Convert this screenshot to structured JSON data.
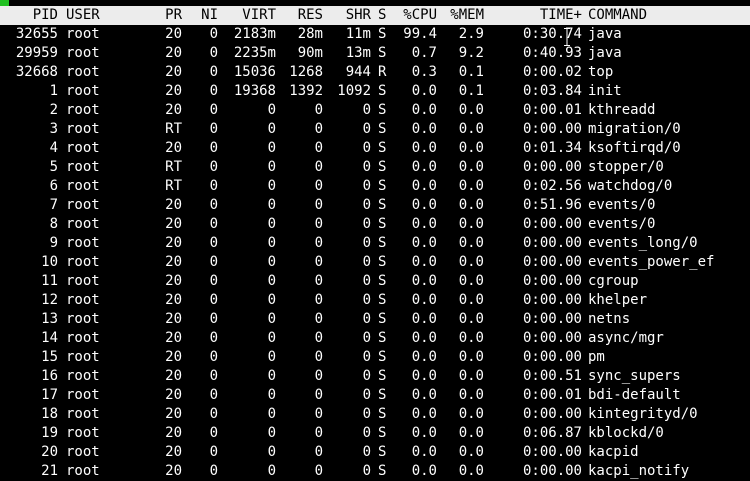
{
  "header": {
    "pid": "PID",
    "user": "USER",
    "pr": "PR",
    "ni": "NI",
    "virt": "VIRT",
    "res": "RES",
    "shr": "SHR",
    "s": "S",
    "cpu": "%CPU",
    "mem": "%MEM",
    "time": "TIME+",
    "command": "COMMAND"
  },
  "processes": [
    {
      "pid": "32655",
      "user": "root",
      "pr": "20",
      "ni": "0",
      "virt": "2183m",
      "res": "28m",
      "shr": "11m",
      "s": "S",
      "cpu": "99.4",
      "mem": "2.9",
      "time": "0:30.74",
      "command": "java"
    },
    {
      "pid": "29959",
      "user": "root",
      "pr": "20",
      "ni": "0",
      "virt": "2235m",
      "res": "90m",
      "shr": "13m",
      "s": "S",
      "cpu": "0.7",
      "mem": "9.2",
      "time": "0:40.93",
      "command": "java"
    },
    {
      "pid": "32668",
      "user": "root",
      "pr": "20",
      "ni": "0",
      "virt": "15036",
      "res": "1268",
      "shr": "944",
      "s": "R",
      "cpu": "0.3",
      "mem": "0.1",
      "time": "0:00.02",
      "command": "top"
    },
    {
      "pid": "1",
      "user": "root",
      "pr": "20",
      "ni": "0",
      "virt": "19368",
      "res": "1392",
      "shr": "1092",
      "s": "S",
      "cpu": "0.0",
      "mem": "0.1",
      "time": "0:03.84",
      "command": "init"
    },
    {
      "pid": "2",
      "user": "root",
      "pr": "20",
      "ni": "0",
      "virt": "0",
      "res": "0",
      "shr": "0",
      "s": "S",
      "cpu": "0.0",
      "mem": "0.0",
      "time": "0:00.01",
      "command": "kthreadd"
    },
    {
      "pid": "3",
      "user": "root",
      "pr": "RT",
      "ni": "0",
      "virt": "0",
      "res": "0",
      "shr": "0",
      "s": "S",
      "cpu": "0.0",
      "mem": "0.0",
      "time": "0:00.00",
      "command": "migration/0"
    },
    {
      "pid": "4",
      "user": "root",
      "pr": "20",
      "ni": "0",
      "virt": "0",
      "res": "0",
      "shr": "0",
      "s": "S",
      "cpu": "0.0",
      "mem": "0.0",
      "time": "0:01.34",
      "command": "ksoftirqd/0"
    },
    {
      "pid": "5",
      "user": "root",
      "pr": "RT",
      "ni": "0",
      "virt": "0",
      "res": "0",
      "shr": "0",
      "s": "S",
      "cpu": "0.0",
      "mem": "0.0",
      "time": "0:00.00",
      "command": "stopper/0"
    },
    {
      "pid": "6",
      "user": "root",
      "pr": "RT",
      "ni": "0",
      "virt": "0",
      "res": "0",
      "shr": "0",
      "s": "S",
      "cpu": "0.0",
      "mem": "0.0",
      "time": "0:02.56",
      "command": "watchdog/0"
    },
    {
      "pid": "7",
      "user": "root",
      "pr": "20",
      "ni": "0",
      "virt": "0",
      "res": "0",
      "shr": "0",
      "s": "S",
      "cpu": "0.0",
      "mem": "0.0",
      "time": "0:51.96",
      "command": "events/0"
    },
    {
      "pid": "8",
      "user": "root",
      "pr": "20",
      "ni": "0",
      "virt": "0",
      "res": "0",
      "shr": "0",
      "s": "S",
      "cpu": "0.0",
      "mem": "0.0",
      "time": "0:00.00",
      "command": "events/0"
    },
    {
      "pid": "9",
      "user": "root",
      "pr": "20",
      "ni": "0",
      "virt": "0",
      "res": "0",
      "shr": "0",
      "s": "S",
      "cpu": "0.0",
      "mem": "0.0",
      "time": "0:00.00",
      "command": "events_long/0"
    },
    {
      "pid": "10",
      "user": "root",
      "pr": "20",
      "ni": "0",
      "virt": "0",
      "res": "0",
      "shr": "0",
      "s": "S",
      "cpu": "0.0",
      "mem": "0.0",
      "time": "0:00.00",
      "command": "events_power_ef"
    },
    {
      "pid": "11",
      "user": "root",
      "pr": "20",
      "ni": "0",
      "virt": "0",
      "res": "0",
      "shr": "0",
      "s": "S",
      "cpu": "0.0",
      "mem": "0.0",
      "time": "0:00.00",
      "command": "cgroup"
    },
    {
      "pid": "12",
      "user": "root",
      "pr": "20",
      "ni": "0",
      "virt": "0",
      "res": "0",
      "shr": "0",
      "s": "S",
      "cpu": "0.0",
      "mem": "0.0",
      "time": "0:00.00",
      "command": "khelper"
    },
    {
      "pid": "13",
      "user": "root",
      "pr": "20",
      "ni": "0",
      "virt": "0",
      "res": "0",
      "shr": "0",
      "s": "S",
      "cpu": "0.0",
      "mem": "0.0",
      "time": "0:00.00",
      "command": "netns"
    },
    {
      "pid": "14",
      "user": "root",
      "pr": "20",
      "ni": "0",
      "virt": "0",
      "res": "0",
      "shr": "0",
      "s": "S",
      "cpu": "0.0",
      "mem": "0.0",
      "time": "0:00.00",
      "command": "async/mgr"
    },
    {
      "pid": "15",
      "user": "root",
      "pr": "20",
      "ni": "0",
      "virt": "0",
      "res": "0",
      "shr": "0",
      "s": "S",
      "cpu": "0.0",
      "mem": "0.0",
      "time": "0:00.00",
      "command": "pm"
    },
    {
      "pid": "16",
      "user": "root",
      "pr": "20",
      "ni": "0",
      "virt": "0",
      "res": "0",
      "shr": "0",
      "s": "S",
      "cpu": "0.0",
      "mem": "0.0",
      "time": "0:00.51",
      "command": "sync_supers"
    },
    {
      "pid": "17",
      "user": "root",
      "pr": "20",
      "ni": "0",
      "virt": "0",
      "res": "0",
      "shr": "0",
      "s": "S",
      "cpu": "0.0",
      "mem": "0.0",
      "time": "0:00.01",
      "command": "bdi-default"
    },
    {
      "pid": "18",
      "user": "root",
      "pr": "20",
      "ni": "0",
      "virt": "0",
      "res": "0",
      "shr": "0",
      "s": "S",
      "cpu": "0.0",
      "mem": "0.0",
      "time": "0:00.00",
      "command": "kintegrityd/0"
    },
    {
      "pid": "19",
      "user": "root",
      "pr": "20",
      "ni": "0",
      "virt": "0",
      "res": "0",
      "shr": "0",
      "s": "S",
      "cpu": "0.0",
      "mem": "0.0",
      "time": "0:06.87",
      "command": "kblockd/0"
    },
    {
      "pid": "20",
      "user": "root",
      "pr": "20",
      "ni": "0",
      "virt": "0",
      "res": "0",
      "shr": "0",
      "s": "S",
      "cpu": "0.0",
      "mem": "0.0",
      "time": "0:00.00",
      "command": "kacpid"
    },
    {
      "pid": "21",
      "user": "root",
      "pr": "20",
      "ni": "0",
      "virt": "0",
      "res": "0",
      "shr": "0",
      "s": "S",
      "cpu": "0.0",
      "mem": "0.0",
      "time": "0:00.00",
      "command": "kacpi_notify"
    }
  ],
  "colors": {
    "background": "#000000",
    "text": "#ffffff",
    "header_background": "#ececec",
    "header_text": "#000000",
    "cursor_block": "#20c020"
  },
  "icons": {
    "mouse_cursor": "i-beam-cursor-icon"
  }
}
